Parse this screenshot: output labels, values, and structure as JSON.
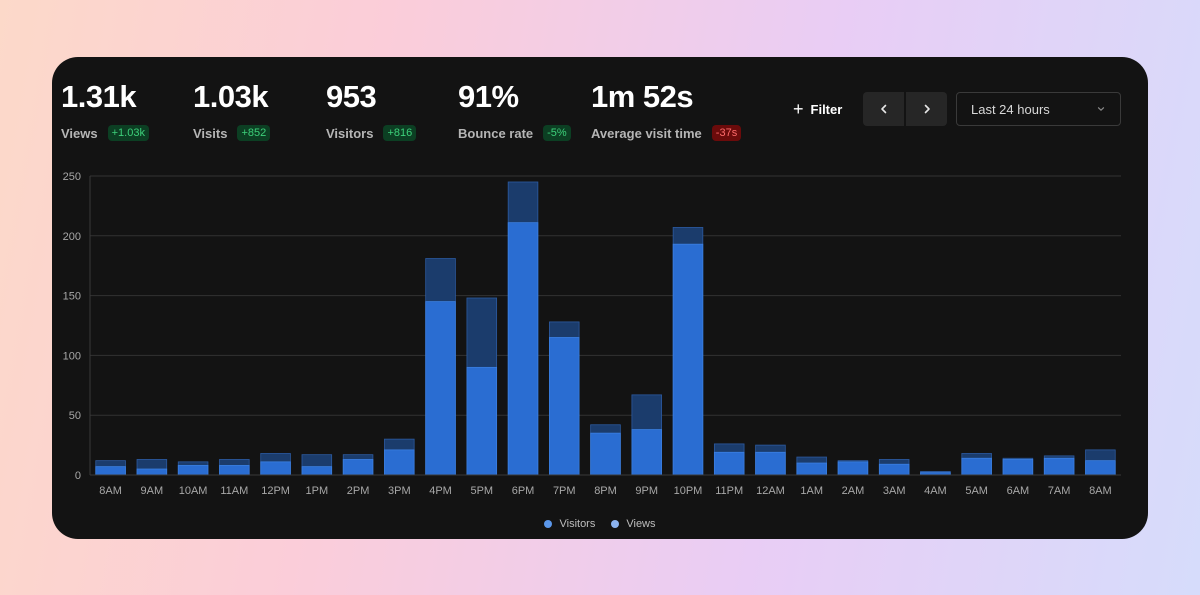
{
  "stats": [
    {
      "value": "1.31k",
      "label": "Views",
      "change": "+1.03k",
      "trend": "up"
    },
    {
      "value": "1.03k",
      "label": "Visits",
      "change": "+852",
      "trend": "up"
    },
    {
      "value": "953",
      "label": "Visitors",
      "change": "+816",
      "trend": "up"
    },
    {
      "value": "91%",
      "label": "Bounce rate",
      "change": "-5%",
      "trend": "up"
    },
    {
      "value": "1m 52s",
      "label": "Average visit time",
      "change": "-37s",
      "trend": "down"
    }
  ],
  "toolbar": {
    "filter_label": "Filter",
    "prev_icon": "chevron-left-icon",
    "next_icon": "chevron-right-icon",
    "date_range": "Last 24 hours"
  },
  "colors": {
    "visitors": "#2a6dd2",
    "views": "#1b3c6c",
    "visitors_legend": "#5b97ea",
    "views_legend": "#8cb3ef"
  },
  "chart_data": {
    "type": "bar",
    "stacked": "overlay",
    "categories": [
      "8AM",
      "9AM",
      "10AM",
      "11AM",
      "12PM",
      "1PM",
      "2PM",
      "3PM",
      "4PM",
      "5PM",
      "6PM",
      "7PM",
      "8PM",
      "9PM",
      "10PM",
      "11PM",
      "12AM",
      "1AM",
      "2AM",
      "3AM",
      "4AM",
      "5AM",
      "6AM",
      "7AM",
      "8AM"
    ],
    "series": [
      {
        "name": "Visitors",
        "values": [
          7,
          5,
          8,
          8,
          11,
          7,
          13,
          21,
          145,
          90,
          211,
          115,
          35,
          38,
          193,
          19,
          19,
          10,
          11,
          9,
          2,
          14,
          13,
          14,
          12
        ]
      },
      {
        "name": "Views",
        "values": [
          12,
          13,
          11,
          13,
          18,
          17,
          17,
          30,
          181,
          148,
          245,
          128,
          42,
          67,
          207,
          26,
          25,
          15,
          12,
          13,
          3,
          18,
          14,
          16,
          21
        ]
      }
    ],
    "ylim": [
      0,
      250
    ],
    "yticks": [
      0,
      50,
      100,
      150,
      200,
      250
    ],
    "legend": [
      "Visitors",
      "Views"
    ],
    "grid": true
  }
}
